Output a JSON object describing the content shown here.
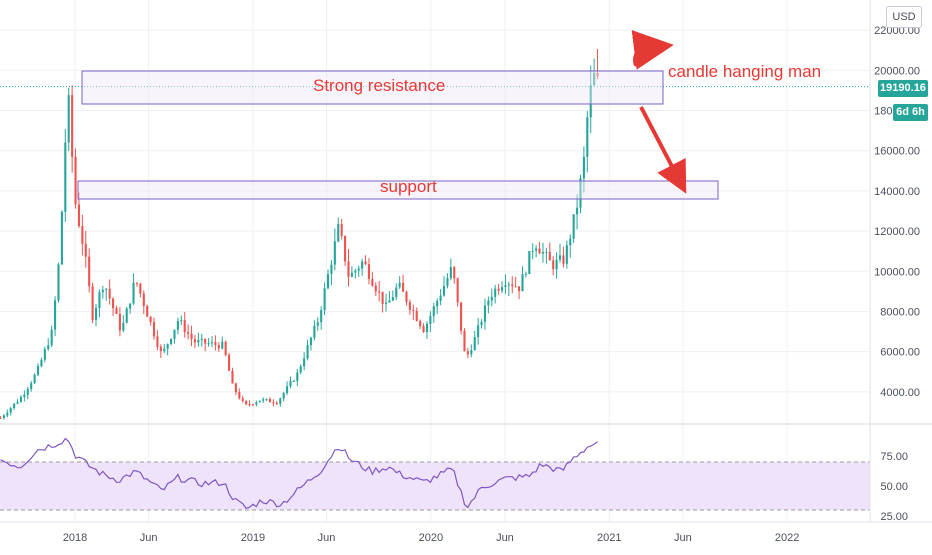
{
  "currency": "USD",
  "colors": {
    "up": "#26a69a",
    "down": "#ef5350",
    "rsi": "#7e57c2",
    "rsi_band": "#efe3fb",
    "annotation": "#e53935",
    "box_stroke": "#7b61c4",
    "box_fill": "#ede7f6",
    "price_badge": "#26a69a",
    "grid": "#eef0f3",
    "price_line": "#26a69a"
  },
  "annotations": {
    "resistance": "Strong resistance",
    "support": "support",
    "hanging_man": "candle hanging man"
  },
  "price_badge": {
    "value": "19190.16",
    "countdown": "6d 6h"
  },
  "chart_data": [
    {
      "type": "candlestick",
      "title": "",
      "xlabel": "",
      "ylabel": "",
      "ylim": [
        2500,
        23500
      ],
      "grid": true,
      "y_ticks": [
        22000,
        20000,
        18000,
        16000,
        14000,
        12000,
        10000,
        8000,
        6000,
        4000
      ],
      "y_tick_labels": [
        "22000.00",
        "20000.00",
        "18000.00",
        "16000.00",
        "14000.00",
        "12000.00",
        "10000.00",
        "8000.00",
        "6000.00",
        "4000.00"
      ],
      "x_range": [
        "2017-07-31",
        "2022-06-20"
      ],
      "x_ticks": [
        "2018-01-01",
        "2018-06-01",
        "2019-01-01",
        "2019-06-01",
        "2020-01-01",
        "2020-06-01",
        "2021-01-01",
        "2021-06-01",
        "2022-01-01"
      ],
      "x_tick_labels": [
        "2018",
        "Jun",
        "2019",
        "Jun",
        "2020",
        "Jun",
        "2021",
        "Jun",
        "2022"
      ],
      "anchors": {
        "dates": [
          "2017-08-01",
          "2017-09-15",
          "2017-10-15",
          "2017-11-15",
          "2017-12-01",
          "2017-12-17",
          "2018-01-01",
          "2018-01-20",
          "2018-02-06",
          "2018-03-01",
          "2018-04-06",
          "2018-05-05",
          "2018-06-28",
          "2018-08-01",
          "2018-09-01",
          "2018-11-01",
          "2018-11-20",
          "2018-12-15",
          "2019-01-15",
          "2019-02-20",
          "2019-04-02",
          "2019-05-15",
          "2019-06-26",
          "2019-07-17",
          "2019-08-15",
          "2019-10-01",
          "2019-10-26",
          "2019-12-18",
          "2020-01-15",
          "2020-02-14",
          "2020-03-12",
          "2020-04-01",
          "2020-05-01",
          "2020-06-01",
          "2020-07-01",
          "2020-08-01",
          "2020-09-05",
          "2020-10-01",
          "2020-10-25",
          "2020-11-10",
          "2020-11-20",
          "2020-11-30",
          "2020-12-12"
        ],
        "values": [
          2700,
          3800,
          5000,
          7000,
          11000,
          19000,
          13500,
          11000,
          7800,
          9500,
          7000,
          9600,
          5800,
          7600,
          6500,
          6300,
          4300,
          3300,
          3600,
          3500,
          4900,
          7600,
          12200,
          9700,
          10500,
          8200,
          9300,
          7100,
          8600,
          10200,
          5600,
          6700,
          8800,
          9600,
          9200,
          11500,
          10300,
          10600,
          13000,
          15500,
          18500,
          19700,
          19190
        ]
      },
      "rsi": {
        "ylim": [
          20,
          100
        ],
        "ticks": [
          75,
          50,
          25
        ],
        "tick_labels": [
          "75.00",
          "50.00",
          "25.00"
        ],
        "band": [
          30,
          70
        ],
        "anchors": {
          "dates": [
            "2017-08-01",
            "2017-09-10",
            "2017-10-15",
            "2017-11-20",
            "2017-12-17",
            "2018-01-01",
            "2018-01-25",
            "2018-02-25",
            "2018-04-01",
            "2018-05-05",
            "2018-06-28",
            "2018-08-01",
            "2018-09-15",
            "2018-11-01",
            "2018-11-25",
            "2018-12-20",
            "2019-01-20",
            "2019-03-01",
            "2019-04-05",
            "2019-05-20",
            "2019-06-26",
            "2019-07-20",
            "2019-09-01",
            "2019-10-05",
            "2019-10-28",
            "2019-12-18",
            "2020-02-14",
            "2020-03-15",
            "2020-04-15",
            "2020-06-01",
            "2020-07-20",
            "2020-08-15",
            "2020-09-25",
            "2020-10-21",
            "2020-11-15",
            "2020-11-30",
            "2020-12-12"
          ],
          "values": [
            72,
            66,
            80,
            85,
            90,
            76,
            68,
            60,
            55,
            62,
            46,
            57,
            52,
            53,
            38,
            31,
            38,
            35,
            47,
            63,
            84,
            72,
            62,
            66,
            60,
            53,
            64,
            32,
            49,
            56,
            58,
            68,
            62,
            74,
            82,
            85,
            84
          ]
        }
      }
    }
  ]
}
